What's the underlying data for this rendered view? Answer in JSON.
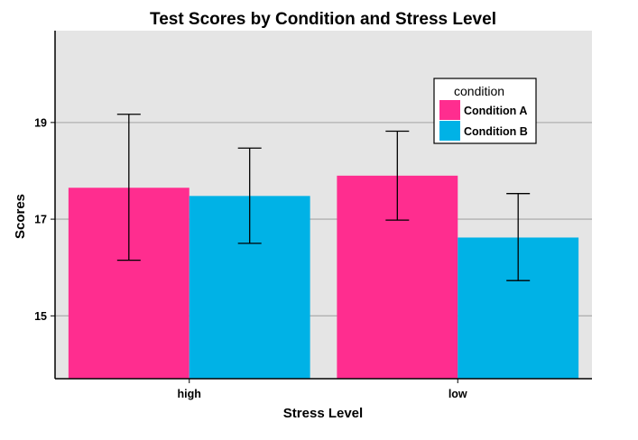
{
  "chart_data": {
    "type": "bar",
    "title": "Test Scores by Condition and Stress Level",
    "xlabel": "Stress Level",
    "ylabel": "Scores",
    "categories": [
      "high",
      "low"
    ],
    "series": [
      {
        "name": "Condition A",
        "color": "#ff2d8f",
        "values": [
          17.65,
          17.9
        ],
        "error_low": [
          16.15,
          16.98
        ],
        "error_high": [
          19.17,
          18.82
        ]
      },
      {
        "name": "Condition B",
        "color": "#00b2e6",
        "values": [
          17.48,
          16.62
        ],
        "error_low": [
          16.5,
          15.73
        ],
        "error_high": [
          18.47,
          17.53
        ]
      }
    ],
    "ylim": [
      13.7,
      20.9
    ],
    "yticks": [
      15,
      17,
      19
    ],
    "ytick_labels": [
      "15",
      "17",
      "19"
    ],
    "grid": true,
    "legend": {
      "title": "condition",
      "placement": "top-right",
      "entries": [
        "Condition A",
        "Condition B"
      ]
    },
    "colors": {
      "panel_background": "#e5e5e5",
      "gridline": "#b0b0b0",
      "axis": "#000000"
    }
  }
}
